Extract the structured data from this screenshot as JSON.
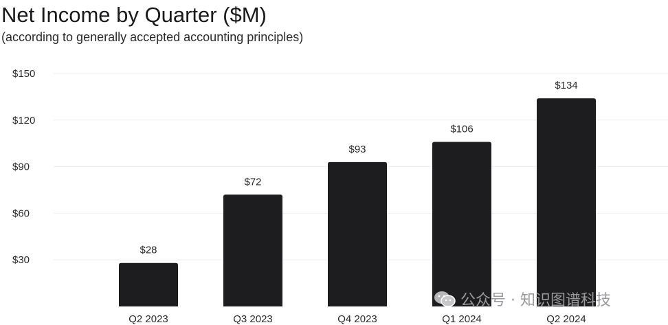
{
  "chart_data": {
    "type": "bar",
    "title": "Net Income by Quarter ($M)",
    "subtitle": "(according to generally accepted accounting principles)",
    "categories": [
      "Q2 2023",
      "Q3 2023",
      "Q4 2023",
      "Q1 2024",
      "Q2 2024"
    ],
    "values": [
      28,
      72,
      93,
      106,
      134
    ],
    "data_labels": [
      "$28",
      "$72",
      "$93",
      "$106",
      "$134"
    ],
    "ylim": [
      0,
      150
    ],
    "yticks": [
      30,
      60,
      90,
      120,
      150
    ],
    "ytick_labels": [
      "$30",
      "$60",
      "$90",
      "$120",
      "$150"
    ],
    "xlabel": "",
    "ylabel": "",
    "grid": true,
    "bar_color": "#1d1d1f",
    "grid_color": "#ededed"
  },
  "watermark": {
    "text": "公众号 · 知识图谱科技",
    "icon": "wechat-icon"
  }
}
